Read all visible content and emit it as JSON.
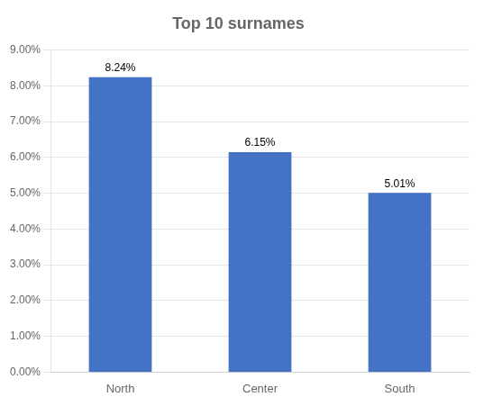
{
  "chart_data": {
    "type": "bar",
    "title": "Top 10 surnames",
    "categories": [
      "North",
      "Center",
      "South"
    ],
    "values": [
      0.0824,
      0.0615,
      0.0501
    ],
    "value_labels": [
      "8.24%",
      "6.15%",
      "5.01%"
    ],
    "data_labels": true,
    "color": "#4472C4",
    "ylim": [
      0,
      0.09
    ],
    "yticks": [
      {
        "value": 0.0,
        "label": "0.00%"
      },
      {
        "value": 0.01,
        "label": "1.00%"
      },
      {
        "value": 0.02,
        "label": "2.00%"
      },
      {
        "value": 0.03,
        "label": "3.00%"
      },
      {
        "value": 0.04,
        "label": "4.00%"
      },
      {
        "value": 0.05,
        "label": "5.00%"
      },
      {
        "value": 0.06,
        "label": "6.00%"
      },
      {
        "value": 0.07,
        "label": "7.00%"
      },
      {
        "value": 0.08,
        "label": "8.00%"
      },
      {
        "value": 0.09,
        "label": "9.00%"
      }
    ],
    "grid": true
  }
}
